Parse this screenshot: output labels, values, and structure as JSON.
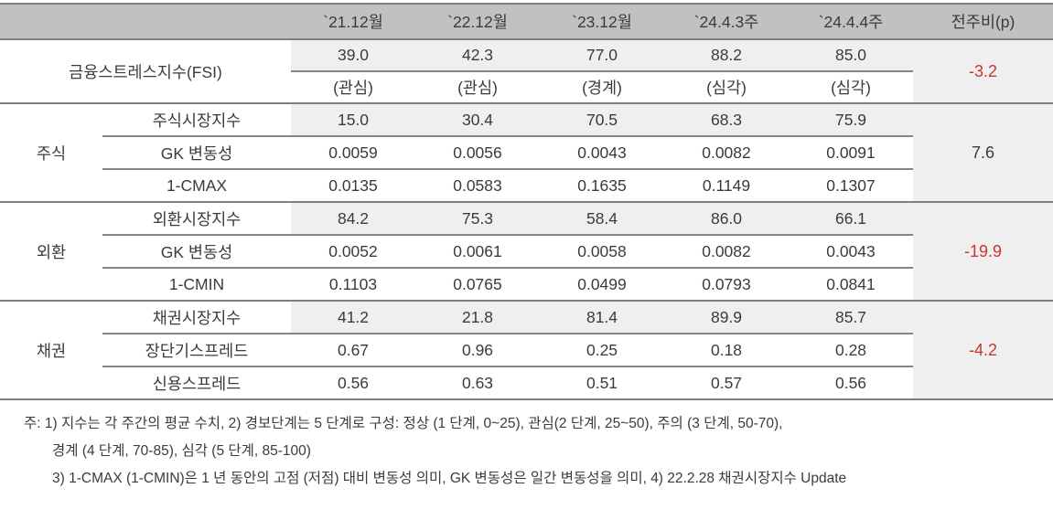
{
  "table": {
    "col_headers": [
      "`21.12월",
      "`22.12월",
      "`23.12월",
      "`24.4.3주",
      "`24.4.4주",
      "전주비(p)"
    ],
    "fsi": {
      "label": "금융스트레스지수(FSI)",
      "values": [
        "39.0",
        "42.3",
        "77.0",
        "88.2",
        "85.0"
      ],
      "levels": [
        "(관심)",
        "(관심)",
        "(경계)",
        "(심각)",
        "(심각)"
      ],
      "wow": "-3.2"
    },
    "groups": [
      {
        "name": "주식",
        "wow": "7.6",
        "rows": [
          {
            "label": "주식시장지수",
            "values": [
              "15.0",
              "30.4",
              "70.5",
              "68.3",
              "75.9"
            ]
          },
          {
            "label": "GK 변동성",
            "values": [
              "0.0059",
              "0.0056",
              "0.0043",
              "0.0082",
              "0.0091"
            ]
          },
          {
            "label": "1-CMAX",
            "values": [
              "0.0135",
              "0.0583",
              "0.1635",
              "0.1149",
              "0.1307"
            ]
          }
        ]
      },
      {
        "name": "외환",
        "wow": "-19.9",
        "rows": [
          {
            "label": "외환시장지수",
            "values": [
              "84.2",
              "75.3",
              "58.4",
              "86.0",
              "66.1"
            ]
          },
          {
            "label": "GK 변동성",
            "values": [
              "0.0052",
              "0.0061",
              "0.0058",
              "0.0082",
              "0.0043"
            ]
          },
          {
            "label": "1-CMIN",
            "values": [
              "0.1103",
              "0.0765",
              "0.0499",
              "0.0793",
              "0.0841"
            ]
          }
        ]
      },
      {
        "name": "채권",
        "wow": "-4.2",
        "rows": [
          {
            "label": "채권시장지수",
            "values": [
              "41.2",
              "21.8",
              "81.4",
              "89.9",
              "85.7"
            ]
          },
          {
            "label": "장단기스프레드",
            "values": [
              "0.67",
              "0.96",
              "0.25",
              "0.18",
              "0.28"
            ]
          },
          {
            "label": "신용스프레드",
            "values": [
              "0.56",
              "0.63",
              "0.51",
              "0.57",
              "0.56"
            ]
          }
        ]
      }
    ]
  },
  "footnotes": [
    "주: 1) 지수는 각 주간의 평균 수치, 2) 경보단계는 5 단계로 구성: 정상 (1 단계, 0~25), 관심(2 단계, 25~50), 주의 (3 단계, 50-70),",
    "경계 (4 단계, 70-85), 심각 (5 단계, 85-100)",
    "3) 1-CMAX (1-CMIN)은 1 년 동안의 고점 (저점) 대비 변동성 의미, GK 변동성은 일간 변동성을 의미, 4) 22.2.28 채권시장지수 Update"
  ],
  "colors": {
    "header_bg": "#c1c1c1",
    "row_shade": "#efefef",
    "border_gray": "#7f7f7f",
    "separator_gray": "#858585",
    "negative_red": "#cc3431",
    "text": "#3b3b3b"
  }
}
